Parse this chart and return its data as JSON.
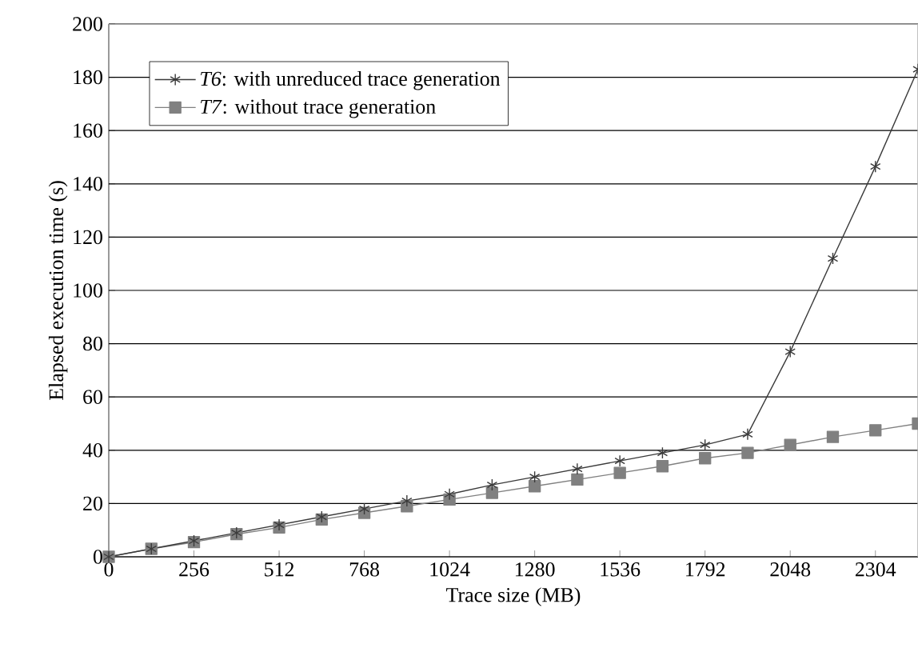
{
  "chart_data": {
    "type": "line",
    "xlabel": "Trace size (MB)",
    "ylabel": "Elapsed execution time (s)",
    "x": [
      0,
      128,
      256,
      384,
      512,
      640,
      768,
      896,
      1024,
      1152,
      1280,
      1408,
      1536,
      1664,
      1792,
      1920,
      2048,
      2176,
      2304,
      2432
    ],
    "series": [
      {
        "name": "*T6*: with unreduced trace generation",
        "color": "#3a3a3a",
        "marker": "cross",
        "values": [
          0,
          3,
          6,
          9,
          12,
          15,
          18,
          21,
          23.5,
          27,
          30,
          33,
          36,
          39,
          42,
          46,
          77,
          112,
          146.5,
          183
        ]
      },
      {
        "name": "*T7*: without trace generation",
        "color": "#808080",
        "marker": "square",
        "values": [
          0,
          3,
          5.5,
          8.5,
          11,
          14,
          16.5,
          19,
          21.5,
          24,
          26.5,
          29,
          31.5,
          34,
          37,
          39,
          42,
          45,
          47.5,
          50
        ]
      }
    ],
    "xlim": [
      0,
      2432
    ],
    "ylim": [
      0,
      200
    ],
    "xticks": [
      0,
      256,
      512,
      768,
      1024,
      1280,
      1536,
      1792,
      2048,
      2304
    ],
    "yticks": [
      0,
      20,
      40,
      60,
      80,
      100,
      120,
      140,
      160,
      180,
      200
    ],
    "grid": "y",
    "legend": "top left",
    "line_style": "solid"
  }
}
